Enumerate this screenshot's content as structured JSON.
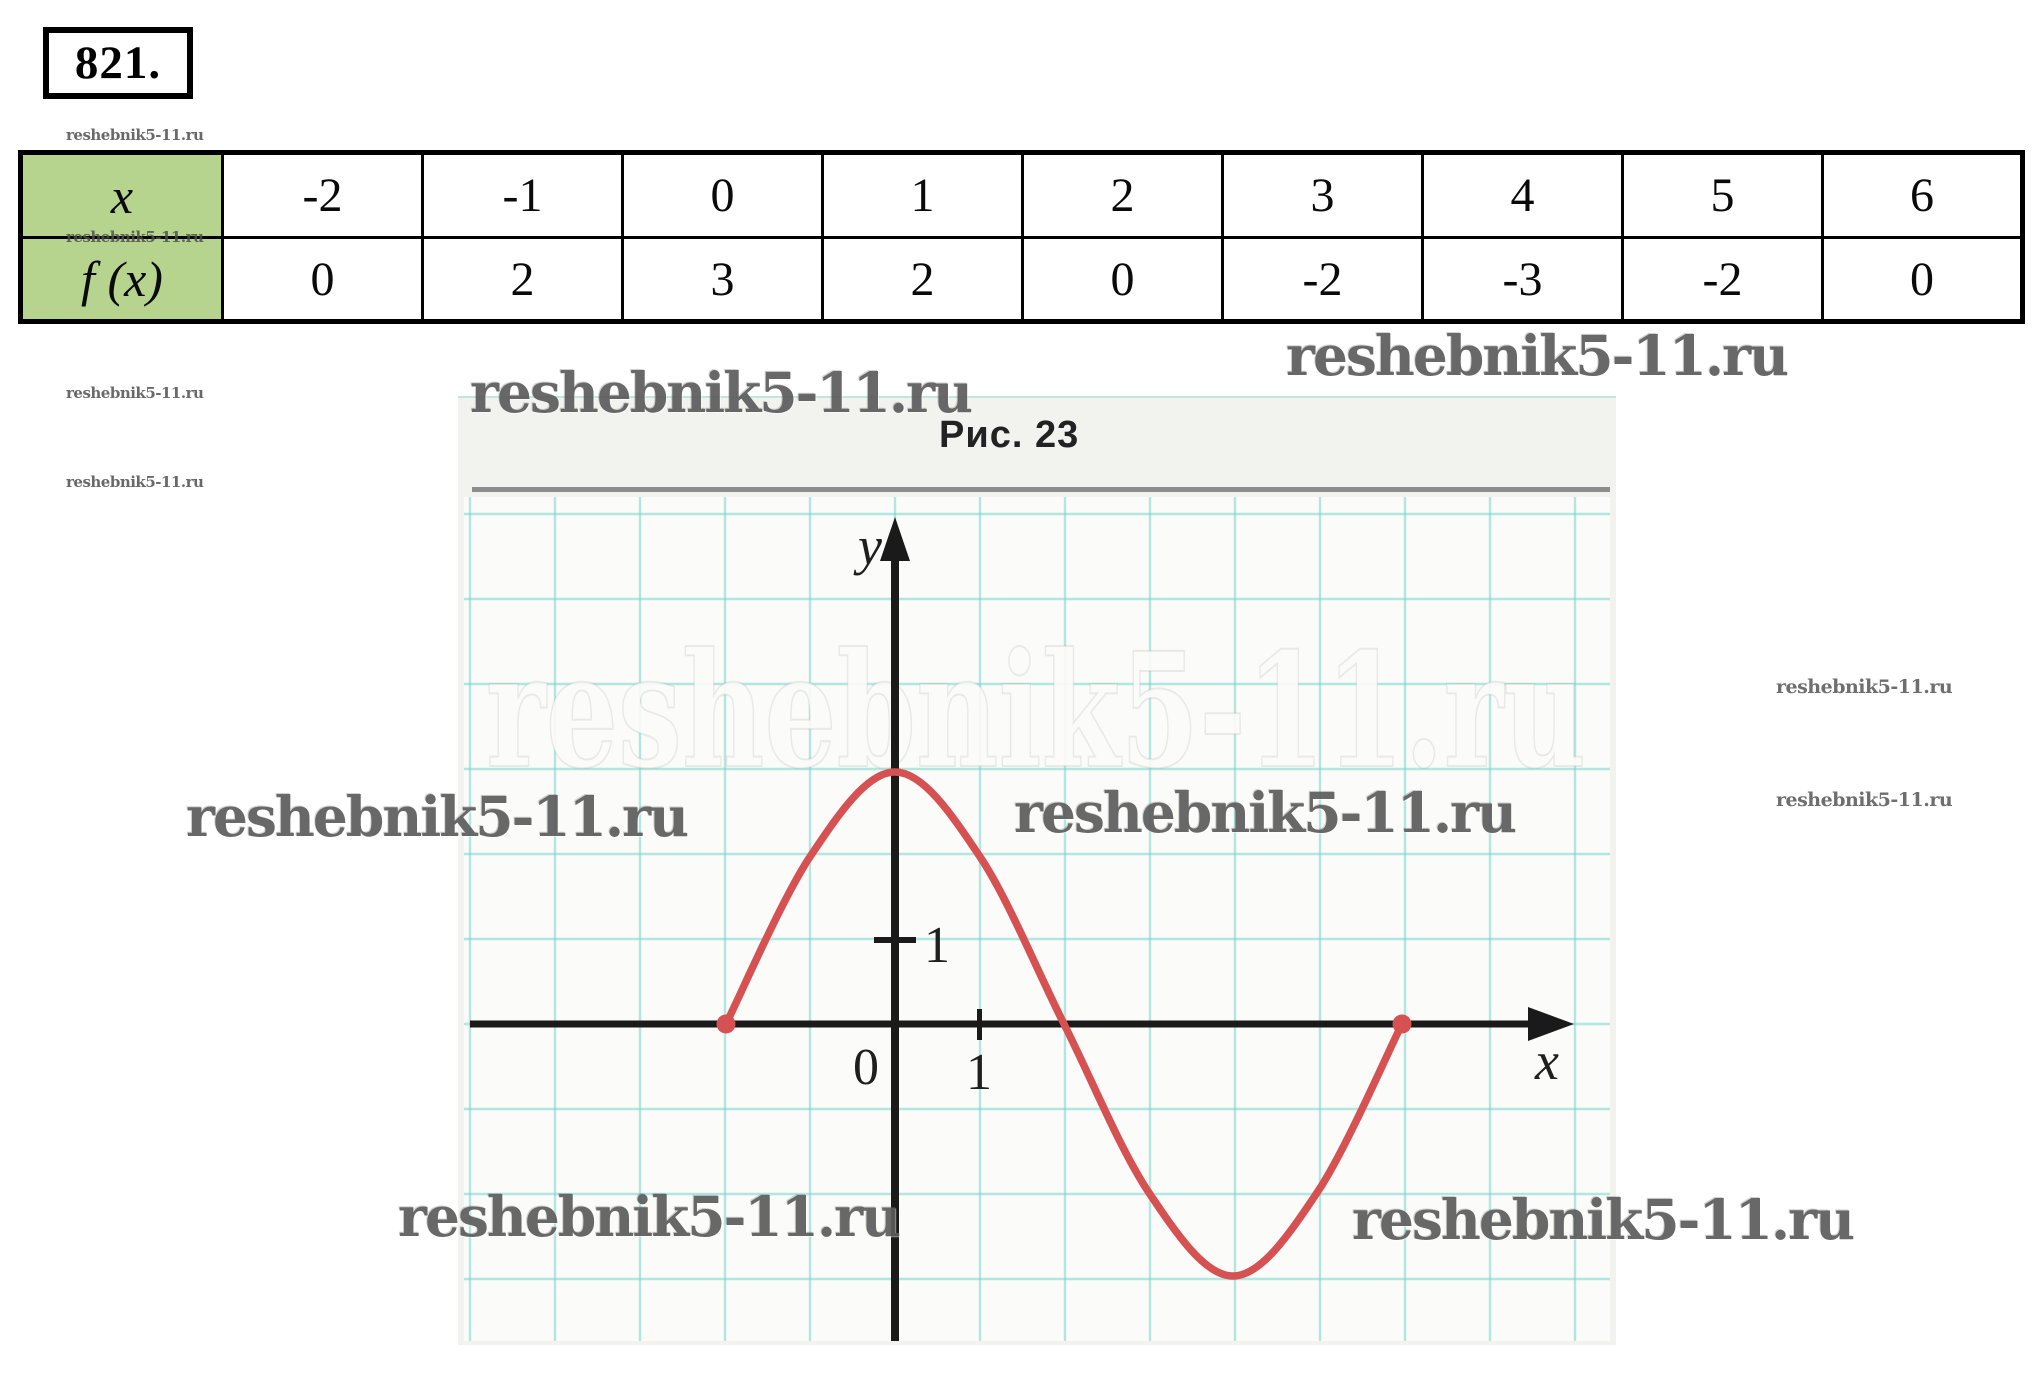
{
  "problem_number": "821.",
  "watermark": {
    "text": "reshebnik5-11.ru"
  },
  "figure": {
    "caption": "Рис. 23"
  },
  "table": {
    "x_row": {
      "label": "x",
      "values": [
        "-2",
        "-1",
        "0",
        "1",
        "2",
        "3",
        "4",
        "5",
        "6"
      ]
    },
    "fx_row": {
      "label": "f (x)",
      "values": [
        "0",
        "2",
        "3",
        "2",
        "0",
        "-2",
        "-3",
        "-2",
        "0"
      ]
    }
  },
  "chart_data": {
    "type": "line",
    "x": [
      -2,
      -1,
      0,
      1,
      2,
      3,
      4,
      5,
      6
    ],
    "y": [
      0,
      2,
      3,
      2,
      0,
      -2,
      -3,
      -2,
      0
    ],
    "xlabel": "x",
    "ylabel": "y",
    "origin_label": "0",
    "x_tick_label": "1",
    "y_tick_label": "1",
    "xlim": [
      -5,
      8
    ],
    "ylim": [
      -3.7,
      6
    ],
    "grid": true,
    "grid_color": "rgba(118,213,204,0.55)",
    "series_color": "#d65252",
    "axis_color": "#1a1a1a",
    "endpoint_dots": true,
    "title": "Рис. 23"
  }
}
